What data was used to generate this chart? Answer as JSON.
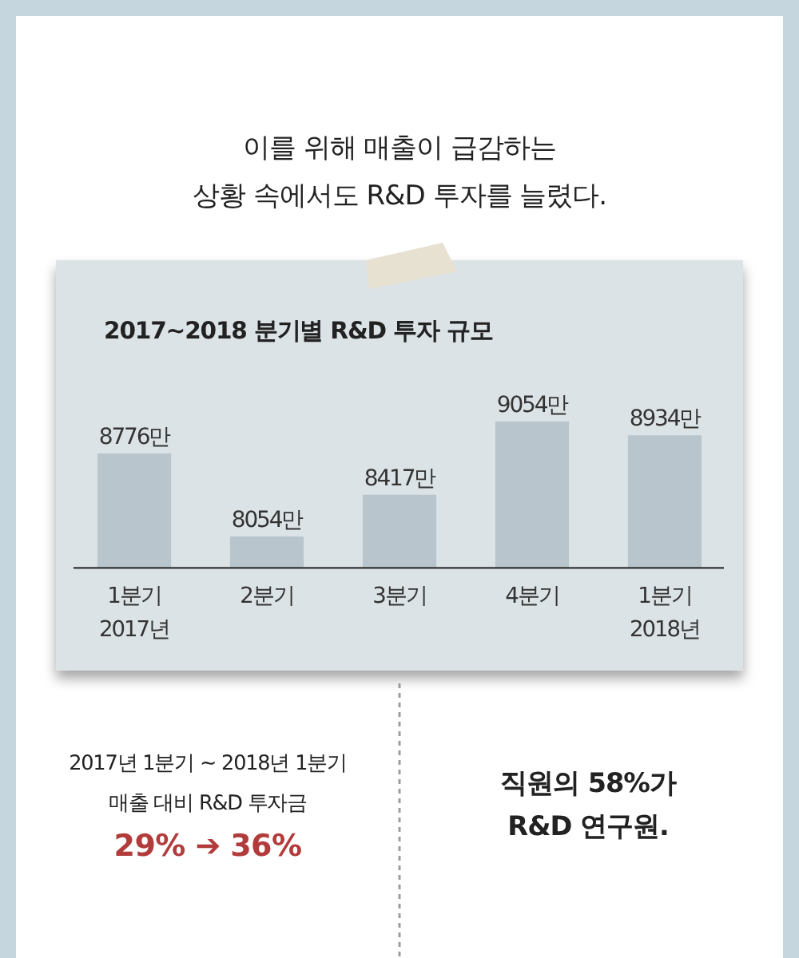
{
  "chart_data": {
    "type": "bar",
    "title": "2017~2018 분기별 R&D 투자 규모",
    "categories": [
      "1분기\n2017년",
      "2분기",
      "3분기",
      "4분기",
      "1분기\n2018년"
    ],
    "values": [
      8776,
      8054,
      8417,
      9054,
      8934
    ],
    "value_labels": [
      "8776만",
      "8054만",
      "8417만",
      "9054만",
      "8934만"
    ],
    "color": "#b8c5cc",
    "ylim": [
      7780,
      9054
    ],
    "tick_labels": "x",
    "annotations": [
      "이를 위해 매출이 급감하는\n상황 속에서도 R&D 투자를 늘렸다.",
      "2017년 1분기 ~ 2018년 1분기\n매출 대비 R&D 투자금",
      "29% ➔ 36%",
      "직원의 58%가\nR&D 연구원."
    ]
  }
}
